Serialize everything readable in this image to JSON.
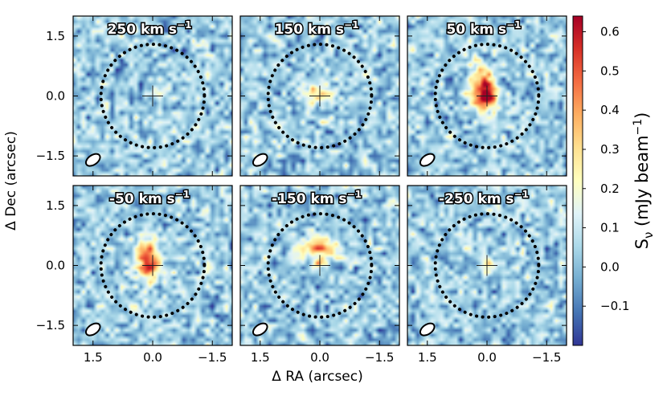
{
  "chart_data": {
    "type": "heatmap",
    "title": "",
    "xlabel": "Δ RA (arcsec)",
    "ylabel": "Δ Dec (arcsec)",
    "x_ticks": [
      1.5,
      0.0,
      -1.5
    ],
    "y_ticks": [
      1.5,
      0.0,
      -1.5
    ],
    "x_tick_labels": [
      "1.5",
      "0.0",
      "−1.5"
    ],
    "y_tick_labels": [
      "1.5",
      "0.0",
      "−1.5"
    ],
    "xlim": [
      2.0,
      -2.0
    ],
    "ylim": [
      -2.0,
      2.0
    ],
    "circle_radius_arcsec": 1.3,
    "colorbar": {
      "label": "S",
      "label_sub": "ν",
      "label_units": " (mJy beam",
      "label_exp": "−1",
      "label_close": ")",
      "range": [
        -0.2,
        0.64
      ],
      "ticks": [
        -0.1,
        0.0,
        0.1,
        0.2,
        0.3,
        0.4,
        0.5,
        0.6
      ],
      "tick_labels": [
        "−0.1",
        "0.0",
        "0.1",
        "0.2",
        "0.3",
        "0.4",
        "0.5",
        "0.6"
      ],
      "colormap": "RdYlBu_r"
    },
    "panels": [
      {
        "label": "250 km s",
        "velocity_km_s": 250,
        "emission": [
          {
            "x": 0.0,
            "y": 0.05,
            "sx": 0.15,
            "sy": 0.15,
            "amp": 0.05
          }
        ]
      },
      {
        "label": "150 km s",
        "velocity_km_s": 150,
        "emission": [
          {
            "x": 0.05,
            "y": 0.1,
            "sx": 0.3,
            "sy": 0.18,
            "amp": 0.22
          },
          {
            "x": -0.3,
            "y": -0.6,
            "sx": 0.25,
            "sy": 0.1,
            "amp": 0.1
          }
        ]
      },
      {
        "label": "50 km s",
        "velocity_km_s": 50,
        "emission": [
          {
            "x": 0.1,
            "y": 0.15,
            "sx": 0.2,
            "sy": 0.35,
            "amp": 0.62
          },
          {
            "x": -0.05,
            "y": -0.05,
            "sx": 0.15,
            "sy": 0.12,
            "amp": 0.25
          }
        ]
      },
      {
        "label": "-50 km s",
        "velocity_km_s": -50,
        "emission": [
          {
            "x": 0.1,
            "y": 0.15,
            "sx": 0.22,
            "sy": 0.35,
            "amp": 0.48
          },
          {
            "x": 0.05,
            "y": -0.1,
            "sx": 0.12,
            "sy": 0.12,
            "amp": 0.25
          }
        ]
      },
      {
        "label": "-150 km s",
        "velocity_km_s": -150,
        "emission": [
          {
            "x": 0.1,
            "y": 0.45,
            "sx": 0.35,
            "sy": 0.15,
            "amp": 0.42
          },
          {
            "x": 0.0,
            "y": 0.05,
            "sx": 0.12,
            "sy": 0.12,
            "amp": 0.3
          },
          {
            "x": -0.5,
            "y": 0.25,
            "sx": 0.2,
            "sy": 0.15,
            "amp": 0.12
          }
        ]
      },
      {
        "label": "-250 km s",
        "velocity_km_s": -250,
        "emission": [
          {
            "x": 0.0,
            "y": 0.05,
            "sx": 0.15,
            "sy": 0.15,
            "amp": 0.14
          },
          {
            "x": 0.5,
            "y": 0.6,
            "sx": 0.12,
            "sy": 0.12,
            "amp": 0.06
          }
        ]
      }
    ],
    "panel_label_exp": "−1",
    "beam": {
      "x": 1.5,
      "y": -1.6,
      "major_arcsec": 0.2,
      "minor_arcsec": 0.12,
      "pa_deg": 35
    },
    "noise_rms_mjy": 0.07
  }
}
